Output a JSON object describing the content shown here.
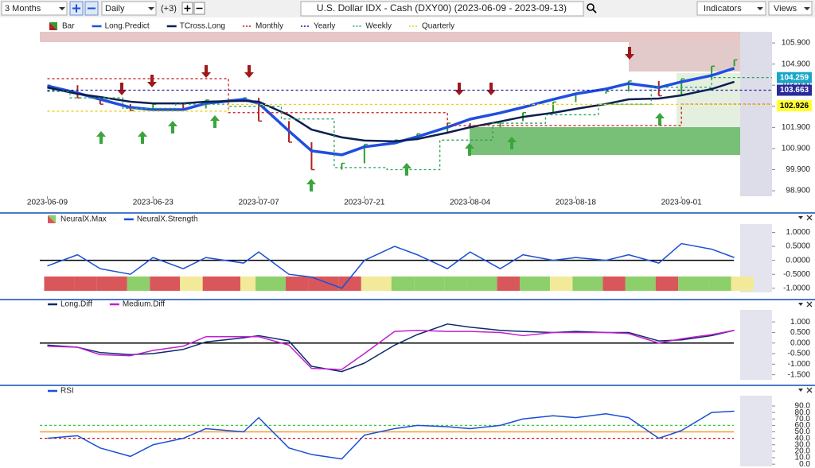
{
  "toolbar": {
    "range": "3 Months",
    "interval": "Daily",
    "extra": "(+3)",
    "symbol": "U.S. Dollar IDX - Cash (DXY00) (2023-06-09 - 2023-09-13)",
    "indicators": "Indicators",
    "views": "Views"
  },
  "chart_data": [
    {
      "type": "line",
      "xlim": [
        "2023-06-08",
        "2023-09-13"
      ],
      "xticks": [
        "2023-06-09",
        "2023-06-23",
        "2023-07-07",
        "2023-07-21",
        "2023-08-04",
        "2023-08-18",
        "2023-09-01"
      ],
      "ylim": [
        98.64,
        106.43
      ],
      "yticks": [
        {
          "value": 98.9,
          "label": "98.900"
        },
        {
          "value": 99.9,
          "label": "99.900"
        },
        {
          "value": 100.9,
          "label": "100.900"
        },
        {
          "value": 101.9,
          "label": "101.900"
        },
        {
          "value": 102.9,
          "label": "102.900"
        },
        {
          "value": 103.9,
          "label": "103.900"
        },
        {
          "value": 104.9,
          "label": "104.900"
        },
        {
          "value": 105.9,
          "label": "105.900"
        }
      ],
      "x": [
        "2023-06-09",
        "2023-06-13",
        "2023-06-16",
        "2023-06-20",
        "2023-06-23",
        "2023-06-27",
        "2023-06-30",
        "2023-07-05",
        "2023-07-07",
        "2023-07-11",
        "2023-07-14",
        "2023-07-18",
        "2023-07-21",
        "2023-07-25",
        "2023-07-28",
        "2023-08-01",
        "2023-08-04",
        "2023-08-08",
        "2023-08-11",
        "2023-08-15",
        "2023-08-18",
        "2023-08-22",
        "2023-08-25",
        "2023-08-29",
        "2023-09-01",
        "2023-09-05",
        "2023-09-08"
      ],
      "series": [
        {
          "name": "Bar",
          "style": "bar",
          "colors": [
            "#b22222",
            "#2e9e2e"
          ],
          "values": [
            103.9,
            103.3,
            103.0,
            102.7,
            103.0,
            102.8,
            103.2,
            103.3,
            102.2,
            101.2,
            99.9,
            100.2,
            101.1,
            101.3,
            101.6,
            102.1,
            101.9,
            102.2,
            102.6,
            103.1,
            103.5,
            103.6,
            104.1,
            103.4,
            104.2,
            104.8,
            105.1
          ]
        },
        {
          "name": "Long.Predict",
          "style": "line",
          "color": "#1f4fe0",
          "width": 3.5,
          "values": [
            103.87,
            103.53,
            103.23,
            102.85,
            102.74,
            102.74,
            103.04,
            103.23,
            103.04,
            101.73,
            100.79,
            100.6,
            100.98,
            101.16,
            101.46,
            101.91,
            102.29,
            102.59,
            102.85,
            103.23,
            103.49,
            103.72,
            103.98,
            103.79,
            104.06,
            104.36,
            104.7
          ]
        },
        {
          "name": "TCross.Long",
          "style": "line",
          "color": "#0b1f4f",
          "width": 2.5,
          "values": [
            103.79,
            103.49,
            103.34,
            103.12,
            103.04,
            103.04,
            103.12,
            103.16,
            103.12,
            102.48,
            101.8,
            101.43,
            101.28,
            101.24,
            101.35,
            101.65,
            101.91,
            102.18,
            102.4,
            102.59,
            102.78,
            103.01,
            103.23,
            103.27,
            103.42,
            103.72,
            104.06
          ]
        },
        {
          "name": "Monthly",
          "style": "step",
          "dash": "3,3",
          "color": "#cc1111",
          "x": [
            "2023-06-09",
            "2023-07-03",
            "2023-08-01",
            "2023-09-01",
            "2023-09-13"
          ],
          "values": [
            104.21,
            102.6,
            101.99,
            103.0,
            103.0
          ]
        },
        {
          "name": "Yearly",
          "style": "step",
          "dash": "3,3",
          "color": "#1a1a9e",
          "x": [
            "2023-06-09",
            "2023-09-13"
          ],
          "values": [
            103.663,
            103.663
          ]
        },
        {
          "name": "Weekly",
          "style": "step",
          "dash": "3,3",
          "color": "#2aa05a",
          "x": [
            "2023-06-09",
            "2023-06-12",
            "2023-06-19",
            "2023-06-26",
            "2023-07-03",
            "2023-07-10",
            "2023-07-17",
            "2023-07-24",
            "2023-07-31",
            "2023-08-07",
            "2023-08-14",
            "2023-08-21",
            "2023-08-28",
            "2023-09-05",
            "2023-09-13"
          ],
          "values": [
            103.6,
            103.3,
            102.8,
            103.0,
            102.9,
            102.3,
            100.0,
            99.9,
            101.3,
            102.1,
            102.5,
            103.0,
            103.8,
            104.26,
            104.26
          ]
        },
        {
          "name": "Quarterly",
          "style": "step",
          "dash": "3,3",
          "color": "#e6d21a",
          "x": [
            "2023-06-09",
            "2023-07-03",
            "2023-09-13"
          ],
          "values": [
            102.67,
            102.99,
            102.99
          ]
        }
      ],
      "current_labels": [
        {
          "value": 104.259,
          "color": "#19a7c9",
          "text_color": "#ffffff"
        },
        {
          "value": 103.663,
          "color": "#2a2a9e",
          "text_color": "#ffffff"
        },
        {
          "value": 102.926,
          "color": "#ffff33",
          "text_color": "#000000"
        }
      ]
    },
    {
      "type": "line",
      "xlim": [
        "2023-06-08",
        "2023-09-13"
      ],
      "ylim": [
        -1.15,
        1.3
      ],
      "yticks": [
        {
          "value": 1,
          "label": "1.0000"
        },
        {
          "value": 0.5,
          "label": "0.5000"
        },
        {
          "value": 0,
          "label": "0.0000"
        },
        {
          "value": -0.5,
          "label": "-0.5000"
        },
        {
          "value": -1,
          "label": "-1.0000"
        }
      ],
      "x": [
        "2023-06-09",
        "2023-06-13",
        "2023-06-16",
        "2023-06-20",
        "2023-06-23",
        "2023-06-27",
        "2023-06-30",
        "2023-07-05",
        "2023-07-07",
        "2023-07-11",
        "2023-07-14",
        "2023-07-18",
        "2023-07-21",
        "2023-07-25",
        "2023-07-28",
        "2023-08-01",
        "2023-08-04",
        "2023-08-08",
        "2023-08-11",
        "2023-08-15",
        "2023-08-18",
        "2023-08-22",
        "2023-08-25",
        "2023-08-29",
        "2023-09-01",
        "2023-09-05",
        "2023-09-08"
      ],
      "series": [
        {
          "name": "NeuralX.Max",
          "style": "state",
          "colors": [
            "#d9575a",
            "#f2ea98",
            "#8ccf6b"
          ],
          "values": [
            -1,
            -1,
            -1,
            1,
            -1,
            0,
            -1,
            0,
            1,
            -1,
            -1,
            -1,
            0,
            1,
            1,
            1,
            1,
            -1,
            1,
            0,
            1,
            -1,
            1,
            -1,
            1,
            1,
            0
          ]
        },
        {
          "name": "NeuralX.Strength",
          "style": "line",
          "color": "#1a4fd6",
          "width": 1.5,
          "values": [
            -0.2,
            0.2,
            -0.3,
            -0.5,
            0.1,
            -0.3,
            0.1,
            -0.1,
            0.3,
            -0.5,
            -0.6,
            -1.0,
            0.0,
            0.5,
            0.2,
            -0.3,
            0.3,
            -0.3,
            0.2,
            0.0,
            0.1,
            0.0,
            0.2,
            -0.1,
            0.6,
            0.4,
            0.1
          ]
        }
      ],
      "levels": [
        {
          "value": 0,
          "color": "#000000"
        }
      ]
    },
    {
      "type": "line",
      "xlim": [
        "2023-06-08",
        "2023-09-13"
      ],
      "ylim": [
        -1.74,
        1.57
      ],
      "yticks": [
        {
          "value": 1,
          "label": "1.000"
        },
        {
          "value": 0.5,
          "label": "0.500"
        },
        {
          "value": 0,
          "label": "0.000"
        },
        {
          "value": -0.5,
          "label": "-0.500"
        },
        {
          "value": -1,
          "label": "-1.000"
        },
        {
          "value": -1.5,
          "label": "-1.500"
        }
      ],
      "x": [
        "2023-06-09",
        "2023-06-13",
        "2023-06-16",
        "2023-06-20",
        "2023-06-23",
        "2023-06-27",
        "2023-06-30",
        "2023-07-05",
        "2023-07-07",
        "2023-07-11",
        "2023-07-14",
        "2023-07-18",
        "2023-07-21",
        "2023-07-25",
        "2023-07-28",
        "2023-08-01",
        "2023-08-04",
        "2023-08-08",
        "2023-08-11",
        "2023-08-15",
        "2023-08-18",
        "2023-08-22",
        "2023-08-25",
        "2023-08-29",
        "2023-09-01",
        "2023-09-05",
        "2023-09-08"
      ],
      "series": [
        {
          "name": "Long.Diff",
          "style": "line",
          "color": "#0b2a6b",
          "width": 1.5,
          "values": [
            -0.1,
            -0.2,
            -0.45,
            -0.55,
            -0.5,
            -0.3,
            0.05,
            0.25,
            0.35,
            0.1,
            -1.1,
            -1.35,
            -0.95,
            -0.1,
            0.4,
            0.9,
            0.75,
            0.6,
            0.55,
            0.5,
            0.55,
            0.5,
            0.5,
            0.1,
            0.15,
            0.35,
            0.6
          ]
        },
        {
          "name": "Medium.Diff",
          "style": "line",
          "color": "#c21fd0",
          "width": 1.5,
          "values": [
            -0.15,
            -0.2,
            -0.55,
            -0.6,
            -0.35,
            -0.15,
            0.3,
            0.3,
            0.3,
            -0.1,
            -1.2,
            -1.25,
            -0.5,
            0.55,
            0.6,
            0.55,
            0.55,
            0.5,
            0.35,
            0.5,
            0.5,
            0.5,
            0.45,
            0.0,
            0.2,
            0.4,
            0.6
          ]
        }
      ],
      "levels": [
        {
          "value": 0,
          "color": "#000000"
        }
      ]
    },
    {
      "type": "line",
      "xlim": [
        "2023-06-08",
        "2023-09-13"
      ],
      "ylim": [
        -3.5,
        106
      ],
      "yticks": [
        {
          "value": 90,
          "label": "90.0"
        },
        {
          "value": 80,
          "label": "80.0"
        },
        {
          "value": 70,
          "label": "70.0"
        },
        {
          "value": 60,
          "label": "60.0"
        },
        {
          "value": 50,
          "label": "50.0"
        },
        {
          "value": 40,
          "label": "40.0"
        },
        {
          "value": 30,
          "label": "30.0"
        },
        {
          "value": 20,
          "label": "20.0"
        },
        {
          "value": 10,
          "label": "10.0"
        },
        {
          "value": 0,
          "label": "0.0"
        }
      ],
      "x": [
        "2023-06-09",
        "2023-06-13",
        "2023-06-16",
        "2023-06-20",
        "2023-06-23",
        "2023-06-27",
        "2023-06-30",
        "2023-07-05",
        "2023-07-07",
        "2023-07-11",
        "2023-07-14",
        "2023-07-18",
        "2023-07-21",
        "2023-07-25",
        "2023-07-28",
        "2023-08-01",
        "2023-08-04",
        "2023-08-08",
        "2023-08-11",
        "2023-08-15",
        "2023-08-18",
        "2023-08-22",
        "2023-08-25",
        "2023-08-29",
        "2023-09-01",
        "2023-09-05",
        "2023-09-08"
      ],
      "series": [
        {
          "name": "RSI",
          "style": "line",
          "color": "#1a4fd6",
          "width": 1.5,
          "values": [
            40,
            44,
            25,
            12,
            30,
            40,
            55,
            50,
            72,
            25,
            15,
            8,
            45,
            55,
            60,
            58,
            55,
            60,
            70,
            75,
            72,
            78,
            72,
            40,
            52,
            80,
            82
          ]
        }
      ],
      "levels": [
        {
          "value": 60,
          "color": "#33cc33",
          "dash": "3,3"
        },
        {
          "value": 50,
          "color": "#f0a030"
        },
        {
          "value": 40,
          "color": "#dd1111",
          "dash": "3,3"
        }
      ]
    }
  ]
}
